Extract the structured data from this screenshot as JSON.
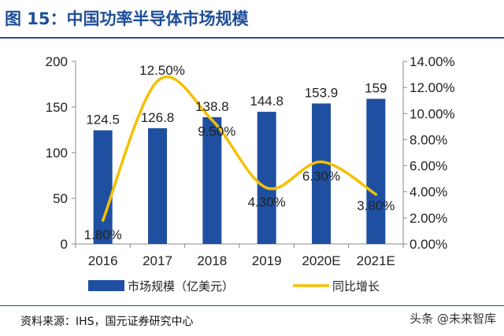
{
  "header": {
    "title": "图 15：中国功率半导体市场规模"
  },
  "footer": {
    "source": "资料来源：IHS，国元证券研究中心",
    "watermark": "头条 @未来智库"
  },
  "colors": {
    "bar": "#1f4fa0",
    "line": "#f5c000",
    "title": "#1f4e9a",
    "axis": "#888888"
  },
  "chart_data": {
    "type": "bar",
    "categories": [
      "2016",
      "2017",
      "2018",
      "2019",
      "2020E",
      "2021E"
    ],
    "series": [
      {
        "name": "市场规模（亿美元）",
        "type": "bar",
        "axis": "left",
        "values": [
          124.5,
          126.8,
          138.8,
          144.8,
          153.9,
          159
        ],
        "labels": [
          "124.5",
          "126.8",
          "138.8",
          "144.8",
          "153.9",
          "159"
        ]
      },
      {
        "name": "同比增长",
        "type": "line",
        "axis": "right",
        "values": [
          1.8,
          12.5,
          9.5,
          4.3,
          6.3,
          3.8
        ],
        "labels": [
          "1.80%",
          "12.50%",
          "9.50%",
          "4.30%",
          "6.30%",
          "3.80%"
        ]
      }
    ],
    "y_left": {
      "lim": [
        0,
        200
      ],
      "ticks": [
        0,
        50,
        100,
        150,
        200
      ]
    },
    "y_right": {
      "lim": [
        0,
        14
      ],
      "ticks": [
        "0.00%",
        "2.00%",
        "4.00%",
        "6.00%",
        "8.00%",
        "10.00%",
        "12.00%",
        "14.00%"
      ]
    },
    "legend": "bottom",
    "grid": false
  }
}
